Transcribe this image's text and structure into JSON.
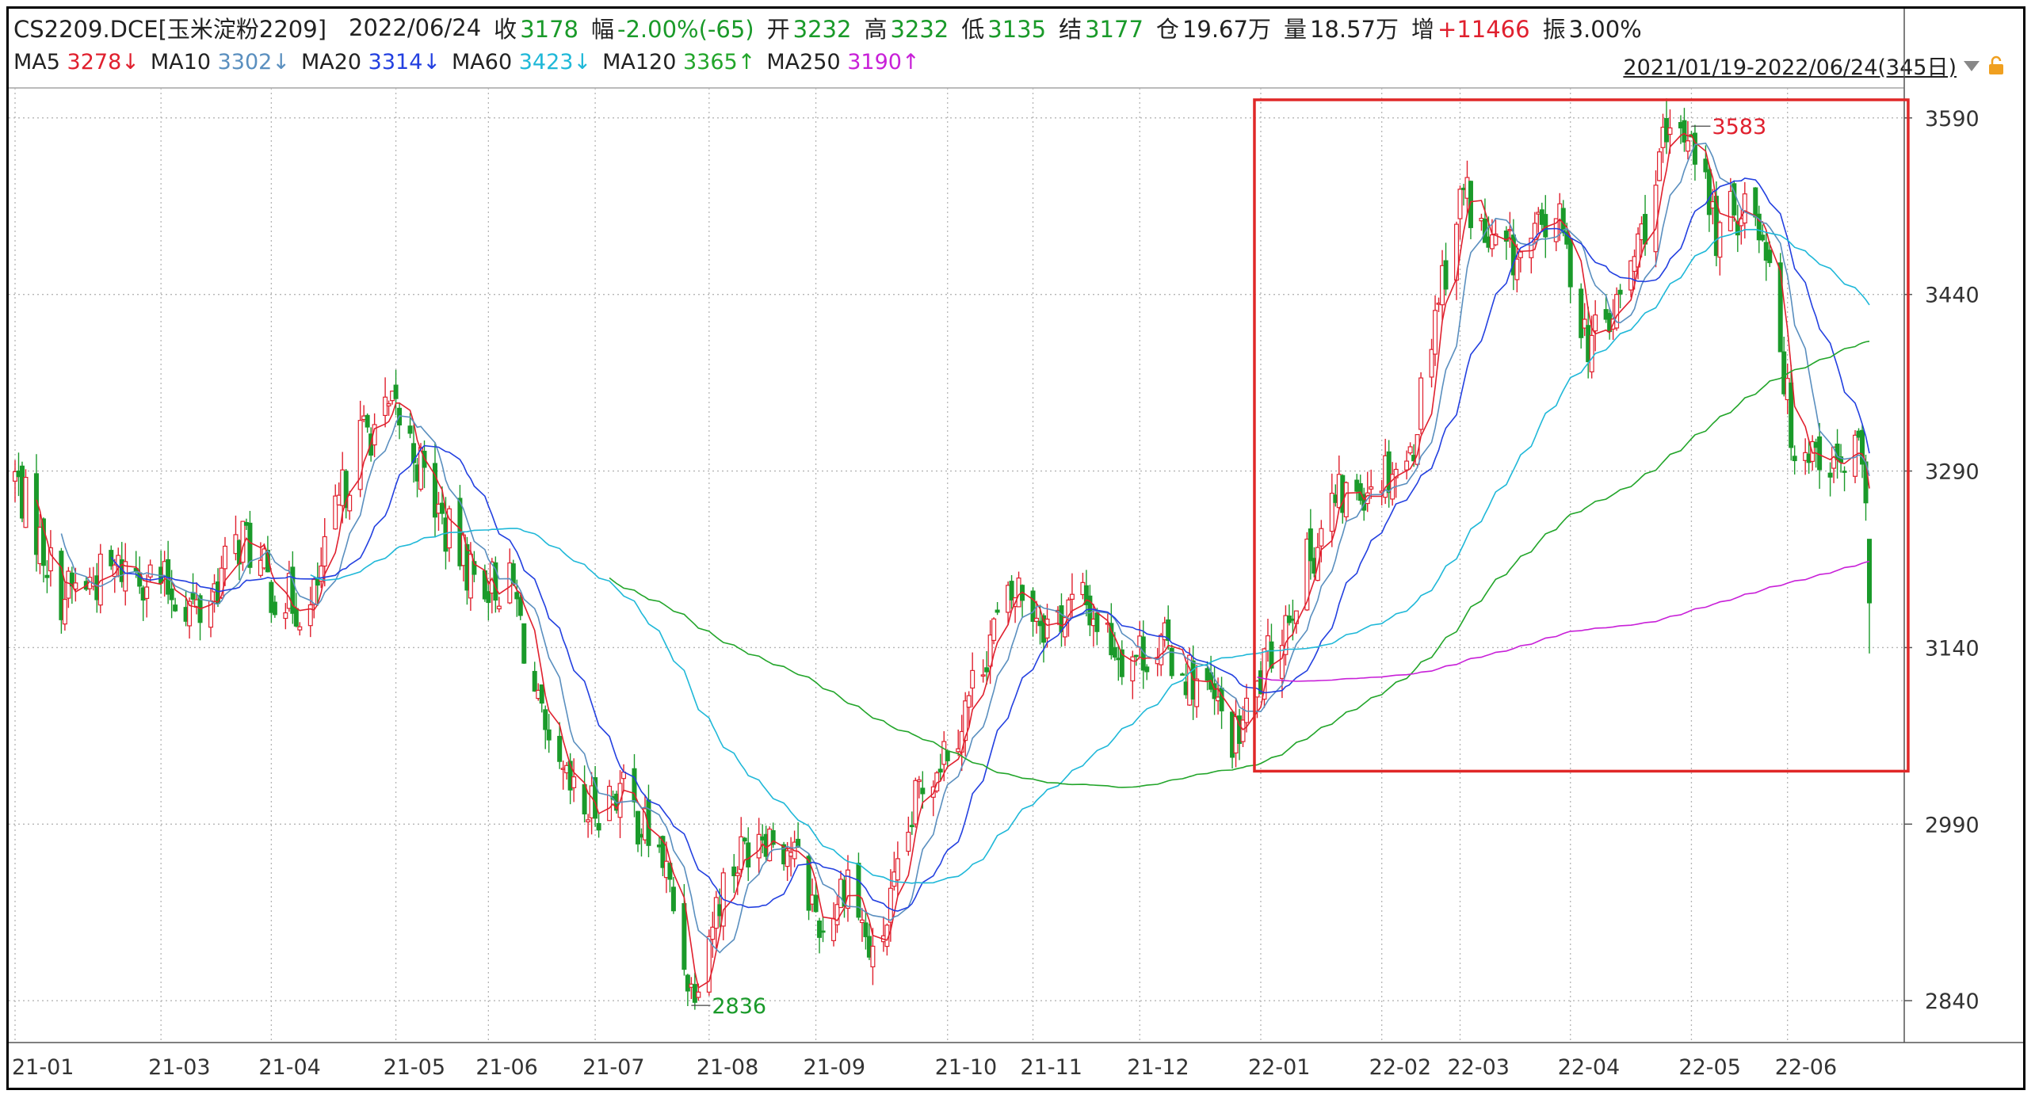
{
  "header": {
    "symbol": "CS2209.DCE[玉米淀粉2209]",
    "date": "2022/06/24",
    "close_label": "收",
    "close_value": "3178",
    "change_label": "幅",
    "change_value": "-2.00%(-65)",
    "open_label": "开",
    "open_value": "3232",
    "high_label": "高",
    "high_value": "3232",
    "low_label": "低",
    "low_value": "3135",
    "settle_label": "结",
    "settle_value": "3177",
    "oi_label": "仓",
    "oi_value": "19.67万",
    "vol_label": "量",
    "vol_value": "18.57万",
    "inc_label": "增",
    "inc_value": "+11466",
    "amp_label": "振",
    "amp_value": "3.00%"
  },
  "ma_legend": [
    {
      "name": "MA5",
      "value": "3278↓",
      "color": "#e0202e"
    },
    {
      "name": "MA10",
      "value": "3302↓",
      "color": "#5a8fbf"
    },
    {
      "name": "MA20",
      "value": "3314↓",
      "color": "#2340e0"
    },
    {
      "name": "MA60",
      "value": "3423↓",
      "color": "#1fb8d8"
    },
    {
      "name": "MA120",
      "value": "3365↑",
      "color": "#22a52a"
    },
    {
      "name": "MA250",
      "value": "3190↑",
      "color": "#c820d8"
    }
  ],
  "date_range": "2021/01/19-2022/06/24(345日)",
  "colors": {
    "up": "#e0202e",
    "down": "#1a9a2a",
    "grid": "#b5b5b5",
    "box": "#e02828",
    "text_red": "#e0202e",
    "text_green": "#1a9a2a",
    "text_blue": "#2340e0"
  },
  "chart_data": {
    "type": "candlestick",
    "title": "CS2209.DCE[玉米淀粉2209]",
    "y_ticks": [
      3590,
      3440,
      3290,
      3140,
      2990,
      2840
    ],
    "ylim": [
      2828,
      3602
    ],
    "x_tick_labels": [
      "21-01",
      "21-03",
      "21-04",
      "21-05",
      "21-06",
      "21-07",
      "21-08",
      "21-09",
      "21-10",
      "21-11",
      "21-12",
      "22-01",
      "22-02",
      "22-03",
      "22-04",
      "22-05",
      "22-06"
    ],
    "x_tick_dates": [
      "2021-01-19",
      "2021-03-01",
      "2021-04-01",
      "2021-05-06",
      "2021-06-01",
      "2021-07-01",
      "2021-08-02",
      "2021-09-01",
      "2021-10-08",
      "2021-11-01",
      "2021-12-01",
      "2022-01-04",
      "2022-02-07",
      "2022-03-01",
      "2022-04-01",
      "2022-05-05",
      "2022-06-01"
    ],
    "x_start": "2021-01-19",
    "x_end": "2022-06-24",
    "price_path": [
      [
        "2021-01-19",
        3285
      ],
      [
        "2021-02-01",
        3185
      ],
      [
        "2021-02-20",
        3210
      ],
      [
        "2021-03-01",
        3195
      ],
      [
        "2021-03-12",
        3170
      ],
      [
        "2021-03-24",
        3235
      ],
      [
        "2021-04-01",
        3190
      ],
      [
        "2021-04-12",
        3170
      ],
      [
        "2021-04-20",
        3260
      ],
      [
        "2021-04-26",
        3320
      ],
      [
        "2021-05-06",
        3340
      ],
      [
        "2021-05-12",
        3300
      ],
      [
        "2021-05-20",
        3240
      ],
      [
        "2021-05-28",
        3200
      ],
      [
        "2021-06-08",
        3190
      ],
      [
        "2021-06-18",
        3040
      ],
      [
        "2021-06-28",
        3000
      ],
      [
        "2021-07-08",
        3020
      ],
      [
        "2021-07-20",
        2960
      ],
      [
        "2021-07-28",
        2850
      ],
      [
        "2021-08-06",
        2940
      ],
      [
        "2021-08-16",
        2990
      ],
      [
        "2021-08-25",
        2970
      ],
      [
        "2021-09-03",
        2900
      ],
      [
        "2021-09-10",
        2950
      ],
      [
        "2021-09-17",
        2870
      ],
      [
        "2021-09-24",
        2940
      ],
      [
        "2021-09-30",
        3020
      ],
      [
        "2021-10-12",
        3080
      ],
      [
        "2021-10-20",
        3150
      ],
      [
        "2021-10-28",
        3190
      ],
      [
        "2021-11-05",
        3160
      ],
      [
        "2021-11-15",
        3180
      ],
      [
        "2021-11-26",
        3135
      ],
      [
        "2021-12-08",
        3140
      ],
      [
        "2021-12-20",
        3100
      ],
      [
        "2021-12-28",
        3060
      ],
      [
        "2022-01-05",
        3120
      ],
      [
        "2022-01-14",
        3190
      ],
      [
        "2022-01-24",
        3260
      ],
      [
        "2022-02-07",
        3290
      ],
      [
        "2022-02-15",
        3300
      ],
      [
        "2022-02-22",
        3430
      ],
      [
        "2022-03-02",
        3530
      ],
      [
        "2022-03-09",
        3480
      ],
      [
        "2022-03-18",
        3470
      ],
      [
        "2022-03-28",
        3510
      ],
      [
        "2022-04-06",
        3400
      ],
      [
        "2022-04-13",
        3420
      ],
      [
        "2022-04-20",
        3480
      ],
      [
        "2022-04-27",
        3560
      ],
      [
        "2022-05-05",
        3583
      ],
      [
        "2022-05-12",
        3490
      ],
      [
        "2022-05-20",
        3520
      ],
      [
        "2022-05-27",
        3480
      ],
      [
        "2022-06-02",
        3320
      ],
      [
        "2022-06-09",
        3310
      ],
      [
        "2022-06-16",
        3290
      ],
      [
        "2022-06-21",
        3310
      ],
      [
        "2022-06-23",
        3243
      ],
      [
        "2022-06-24",
        3178
      ]
    ],
    "series": [
      {
        "name": "MA5",
        "color": "#e0202e",
        "period": 5
      },
      {
        "name": "MA10",
        "color": "#5a8fbf",
        "period": 10
      },
      {
        "name": "MA20",
        "color": "#2340e0",
        "period": 20
      },
      {
        "name": "MA60",
        "color": "#1fb8d8",
        "period": 60
      },
      {
        "name": "MA120",
        "color": "#22a52a",
        "period": 120
      },
      {
        "name": "MA250",
        "color": "#c820d8",
        "period": 250
      }
    ],
    "annotations": [
      {
        "text": "3583",
        "date": "2022-05-05",
        "value": 3583,
        "color": "#e0202e"
      },
      {
        "text": "2836",
        "date": "2021-07-28",
        "value": 2836,
        "color": "#1a9a2a"
      }
    ],
    "highlight_box": {
      "from": "2022-01-04",
      "to": "2022-06-30",
      "low": 3035,
      "high": 3600
    }
  }
}
